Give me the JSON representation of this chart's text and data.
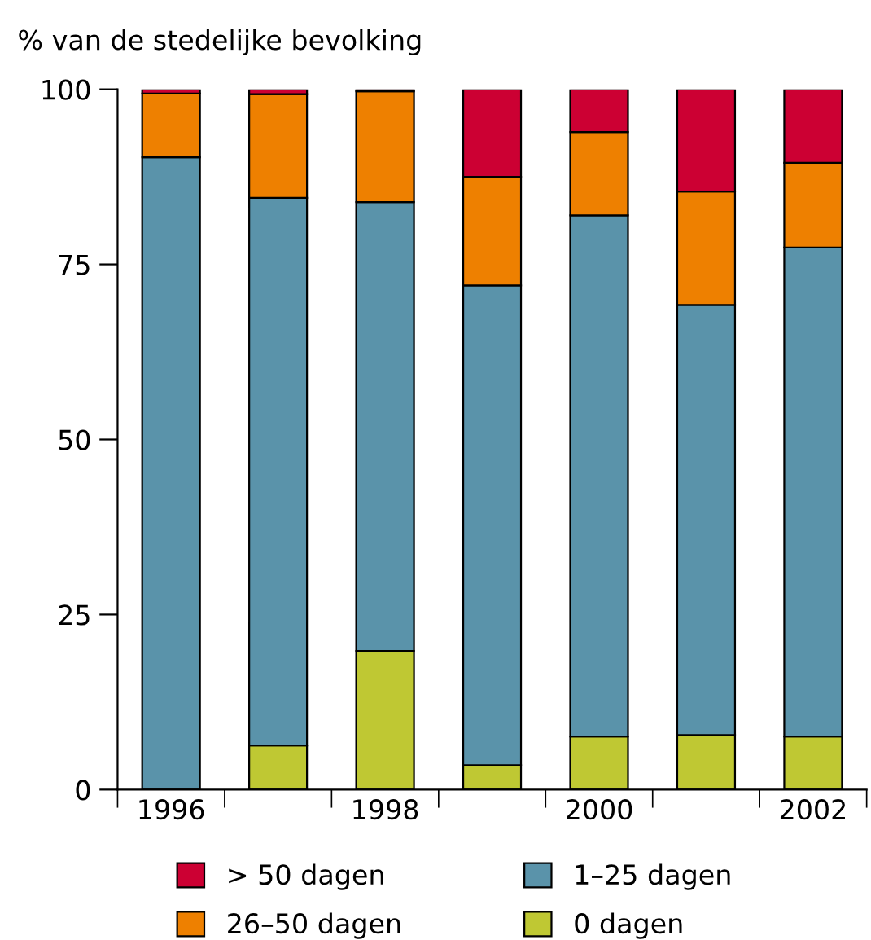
{
  "chart_data": {
    "type": "bar",
    "stacked": true,
    "ylabel": "% van de stedelijke bevolking",
    "categories": [
      "1996",
      null,
      "1998",
      null,
      "2000",
      null,
      "2002"
    ],
    "series": [
      {
        "name": "0 dagen",
        "color": "#bfc833",
        "values": [
          0,
          6.3,
          19.8,
          3.5,
          7.6,
          7.8,
          7.6
        ]
      },
      {
        "name": "1–25 dagen",
        "color": "#5a93aa",
        "values": [
          90.3,
          78.2,
          64.1,
          68.5,
          74.4,
          61.4,
          69.8
        ]
      },
      {
        "name": "26–50 dagen",
        "color": "#ee8000",
        "values": [
          9.1,
          14.8,
          15.8,
          15.5,
          11.9,
          16.2,
          12.1
        ]
      },
      {
        "name": "> 50 dagen",
        "color": "#cc0033",
        "values": [
          0.6,
          0.7,
          0.3,
          12.5,
          6.1,
          14.6,
          10.5
        ]
      }
    ],
    "ylim": [
      0,
      100
    ],
    "yticks": [
      0,
      25,
      50,
      75,
      100
    ],
    "grid": false,
    "legend": "bottom"
  }
}
